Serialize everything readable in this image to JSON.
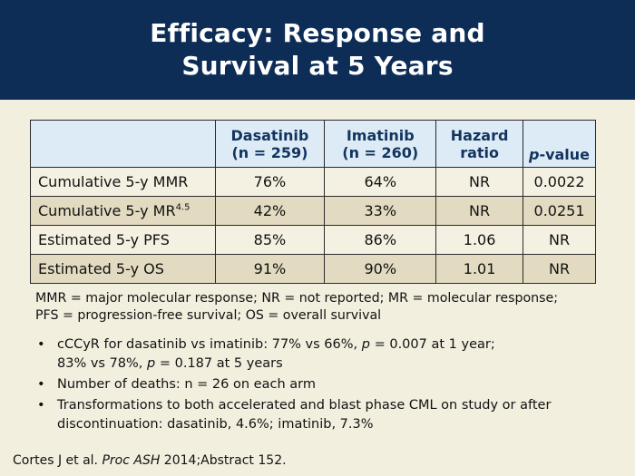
{
  "header": {
    "title_line1": "Efficacy: Response and",
    "title_line2": "Survival at 5 Years"
  },
  "table": {
    "col1_line1": "Dasatinib",
    "col1_line2": "(n = 259)",
    "col2_line1": "Imatinib",
    "col2_line2": "(n = 260)",
    "col3_line1": "Hazard",
    "col3_line2": "ratio",
    "col4_italic": "p",
    "col4_rest": "-value",
    "rows": [
      {
        "label": "Cumulative 5-y MMR",
        "label_sup": "",
        "dasatinib": "76%",
        "imatinib": "64%",
        "hazard": "NR",
        "pvalue": "0.0022"
      },
      {
        "label": "Cumulative 5-y MR",
        "label_sup": "4.5",
        "dasatinib": "42%",
        "imatinib": "33%",
        "hazard": "NR",
        "pvalue": "0.0251"
      },
      {
        "label": "Estimated 5-y PFS",
        "label_sup": "",
        "dasatinib": "85%",
        "imatinib": "86%",
        "hazard": "1.06",
        "pvalue": "NR"
      },
      {
        "label": "Estimated 5-y OS",
        "label_sup": "",
        "dasatinib": "91%",
        "imatinib": "90%",
        "hazard": "1.01",
        "pvalue": "NR"
      }
    ]
  },
  "abbreviations": {
    "line1": "MMR = major molecular response; NR = not reported; MR = molecular response;",
    "line2": "PFS = progression-free survival; OS = overall survival"
  },
  "bullets": {
    "b1_l1_a": "cCCyR for dasatinib vs imatinib: 77% vs 66%, ",
    "b1_l1_p": "p",
    "b1_l1_b": " = 0.007 at 1 year;",
    "b1_l2_a": "83% vs 78%, ",
    "b1_l2_p": "p",
    "b1_l2_b": " = 0.187 at 5 years",
    "b2": "Number of deaths: n = 26 on each arm",
    "b3_l1": "Transformations to both accelerated and blast phase CML on study or after",
    "b3_l2": "discontinuation: dasatinib, 4.6%; imatinib, 7.3%"
  },
  "reference": {
    "authors": "Cortes J et al. ",
    "journal": "Proc ASH",
    "rest": " 2014;Abstract 152."
  }
}
